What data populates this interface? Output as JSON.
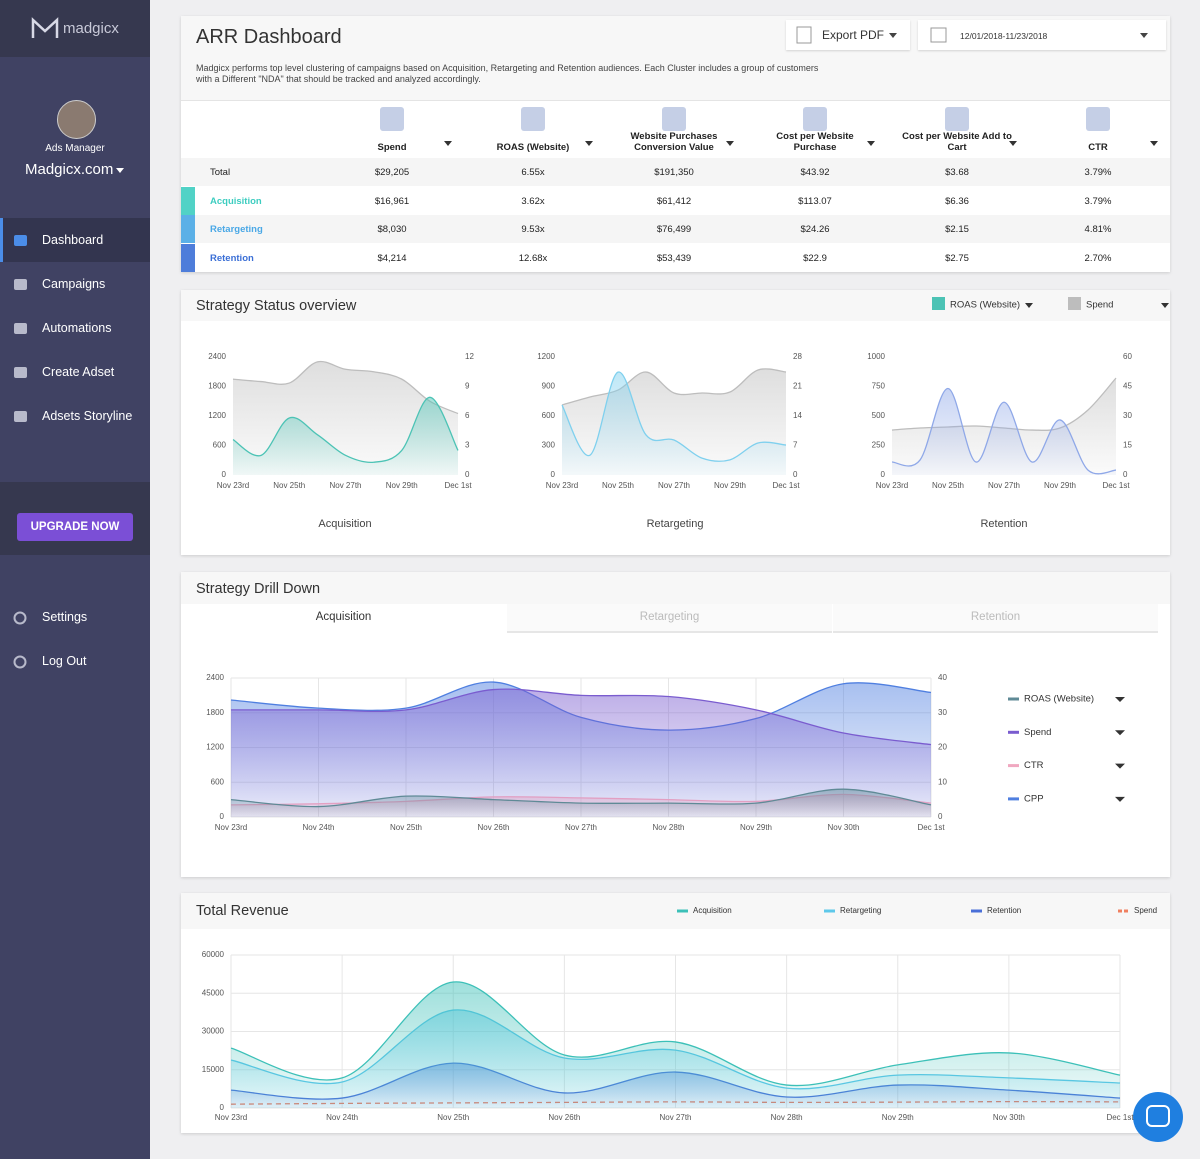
{
  "sidebar": {
    "logo": "madgicx",
    "role": "Ads Manager",
    "account": "Madgicx.com",
    "nav": [
      "Dashboard",
      "Campaigns",
      "Automations",
      "Create Adset",
      "Adsets Storyline"
    ],
    "upgrade": "UPGRADE NOW",
    "footer_nav": [
      "Settings",
      "Log Out"
    ]
  },
  "header": {
    "title": "ARR Dashboard",
    "description": "Madgicx performs top level clustering of campaigns based on Acquisition, Retargeting and Retention audiences. Each Cluster includes a group of customers with a Different \"NDA\" that should be tracked and analyzed accordingly.",
    "export": "Export PDF",
    "date_range": "12/01/2018-11/23/2018"
  },
  "table": {
    "columns": [
      "Spend",
      "ROAS (Website)",
      "Website Purchases Conversion Value",
      "Cost per Website Purchase",
      "Cost per Website Add to Cart",
      "CTR"
    ],
    "rows": [
      [
        "Total",
        "$29,205",
        "6.55x",
        "$191,350",
        "$43.92",
        "$3.68",
        "3.79%"
      ],
      [
        "Acquisition",
        "$16,961",
        "3.62x",
        "$61,412",
        "$113.07",
        "$6.36",
        "3.79%"
      ],
      [
        "Retargeting",
        "$8,030",
        "9.53x",
        "$76,499",
        "$24.26",
        "$2.15",
        "4.81%"
      ],
      [
        "Retention",
        "$4,214",
        "12.68x",
        "$53,439",
        "$22.9",
        "$2.75",
        "2.70%"
      ]
    ]
  },
  "strategy_status": {
    "title": "Strategy Status overview"
  },
  "drill_down": {
    "tabs": [
      "Acquisition",
      "Retargeting",
      "Retention"
    ]
  },
  "chart_data": [
    {
      "type": "line",
      "title": "Acquisition",
      "legend": "top-right",
      "categories": [
        "Nov 23rd",
        null,
        "Nov 25th",
        null,
        "Nov 27th",
        null,
        "Nov 29th",
        null,
        "Dec 1st"
      ],
      "ylim": [
        0,
        2400
      ],
      "yticks": [
        0,
        600,
        1200,
        1800,
        2400
      ],
      "y2lim": [
        0,
        12
      ],
      "y2ticks": [
        0,
        3,
        6,
        9,
        12
      ],
      "series": [
        {
          "name": "ROAS (Website)",
          "color": "#4cc3b5",
          "axis": "y2",
          "values": [
            3.6,
            2.0,
            5.8,
            4.1,
            2.0,
            1.3,
            2.5,
            7.9,
            2.5
          ]
        },
        {
          "name": "Spend",
          "color": "#bdbdbd",
          "values": [
            1950,
            1900,
            1870,
            2300,
            2150,
            2100,
            1950,
            1500,
            1250
          ]
        }
      ]
    },
    {
      "type": "line",
      "title": "Retargeting",
      "categories": [
        "Nov 23rd",
        null,
        "Nov 25th",
        null,
        "Nov 27th",
        null,
        "Nov 29th",
        null,
        "Dec 1st"
      ],
      "ylim": [
        0,
        1200
      ],
      "yticks": [
        0,
        300,
        600,
        900,
        1200
      ],
      "y2lim": [
        0,
        28
      ],
      "y2ticks": [
        0,
        7,
        14,
        21,
        28
      ],
      "series": [
        {
          "name": "ROAS (Website)",
          "color": "#7fd0ee",
          "axis": "y2",
          "values": [
            16.6,
            4.7,
            24.4,
            9.5,
            8.3,
            4.0,
            3.6,
            7.6,
            7.1
          ]
        },
        {
          "name": "Spend",
          "color": "#bdbdbd",
          "values": [
            712,
            793,
            864,
            1047,
            834,
            834,
            844,
            1068,
            1047
          ]
        }
      ]
    },
    {
      "type": "line",
      "title": "Retention",
      "categories": [
        "Nov 23rd",
        null,
        "Nov 25th",
        null,
        "Nov 27th",
        null,
        "Nov 29th",
        null,
        "Dec 1st"
      ],
      "ylim": [
        0,
        1000
      ],
      "yticks": [
        0,
        250,
        500,
        750,
        1000
      ],
      "y2lim": [
        0,
        60
      ],
      "y2ticks": [
        0,
        15,
        30,
        45,
        60
      ],
      "series": [
        {
          "name": "ROAS (Website)",
          "color": "#8fa8e8",
          "axis": "y2",
          "values": [
            6.6,
            7.6,
            44,
            6.6,
            37,
            6.6,
            28,
            2.5,
            2.5
          ]
        },
        {
          "name": "Spend",
          "color": "#bdbdbd",
          "values": [
            381,
            398,
            407,
            415,
            398,
            381,
            398,
            551,
            822
          ]
        }
      ]
    },
    {
      "type": "line",
      "title": "Strategy Drill Down",
      "legend": "right",
      "grid": true,
      "categories": [
        "Nov 23rd",
        "Nov 24th",
        "Nov 25th",
        "Nov 26th",
        "Nov 27th",
        "Nov 28th",
        "Nov 29th",
        "Nov 30th",
        "Dec 1st"
      ],
      "ylim": [
        0,
        2400
      ],
      "yticks": [
        0,
        600,
        1200,
        1800,
        2400
      ],
      "y2lim": [
        0,
        40
      ],
      "y2ticks": [
        0,
        10,
        20,
        30,
        40
      ],
      "series": [
        {
          "name": "ROAS (Website)",
          "color": "#5f8a96",
          "axis": "y2",
          "values": [
            5,
            3,
            6,
            5,
            4,
            4,
            4,
            8,
            3.5
          ]
        },
        {
          "name": "Spend",
          "color": "#7a5ccf",
          "values": [
            1850,
            1850,
            1850,
            2200,
            2100,
            2080,
            1850,
            1450,
            1250
          ]
        },
        {
          "name": "CTR",
          "color": "#f0a8c0",
          "axis": "y2",
          "values": [
            3.5,
            3.8,
            4.5,
            5.8,
            5.5,
            5,
            4.5,
            6.5,
            4
          ]
        },
        {
          "name": "CPP",
          "color": "#4f7fe0",
          "values": [
            2020,
            1880,
            1880,
            2330,
            1720,
            1500,
            1700,
            2300,
            2150
          ]
        }
      ]
    },
    {
      "type": "line",
      "title": "Total Revenue",
      "legend": "top",
      "grid": true,
      "categories": [
        "Nov 23rd",
        "Nov 24th",
        "Nov 25th",
        "Nov 26th",
        "Nov 27th",
        "Nov 28th",
        "Nov 29th",
        "Nov 30th",
        "Dec 1st"
      ],
      "ylim": [
        0,
        60000
      ],
      "yticks": [
        0,
        15000,
        30000,
        45000,
        60000
      ],
      "series": [
        {
          "name": "Acquisition",
          "color": "#3cc0b8",
          "values": [
            23500,
            11800,
            49400,
            20800,
            25900,
            9000,
            16900,
            21600,
            12900
          ]
        },
        {
          "name": "Retargeting",
          "color": "#5ec8ea",
          "values": [
            18800,
            10200,
            38400,
            19600,
            22700,
            7800,
            12900,
            11800,
            9800
          ]
        },
        {
          "name": "Retention",
          "color": "#4a6fd8",
          "values": [
            7000,
            3900,
            17600,
            5900,
            14100,
            4300,
            9000,
            7000,
            3900
          ]
        },
        {
          "name": "Spend",
          "color": "#f08060",
          "line_style": "dashed",
          "values": [
            1500,
            1800,
            2000,
            2200,
            2400,
            2200,
            2300,
            2500,
            2400
          ]
        }
      ]
    }
  ]
}
